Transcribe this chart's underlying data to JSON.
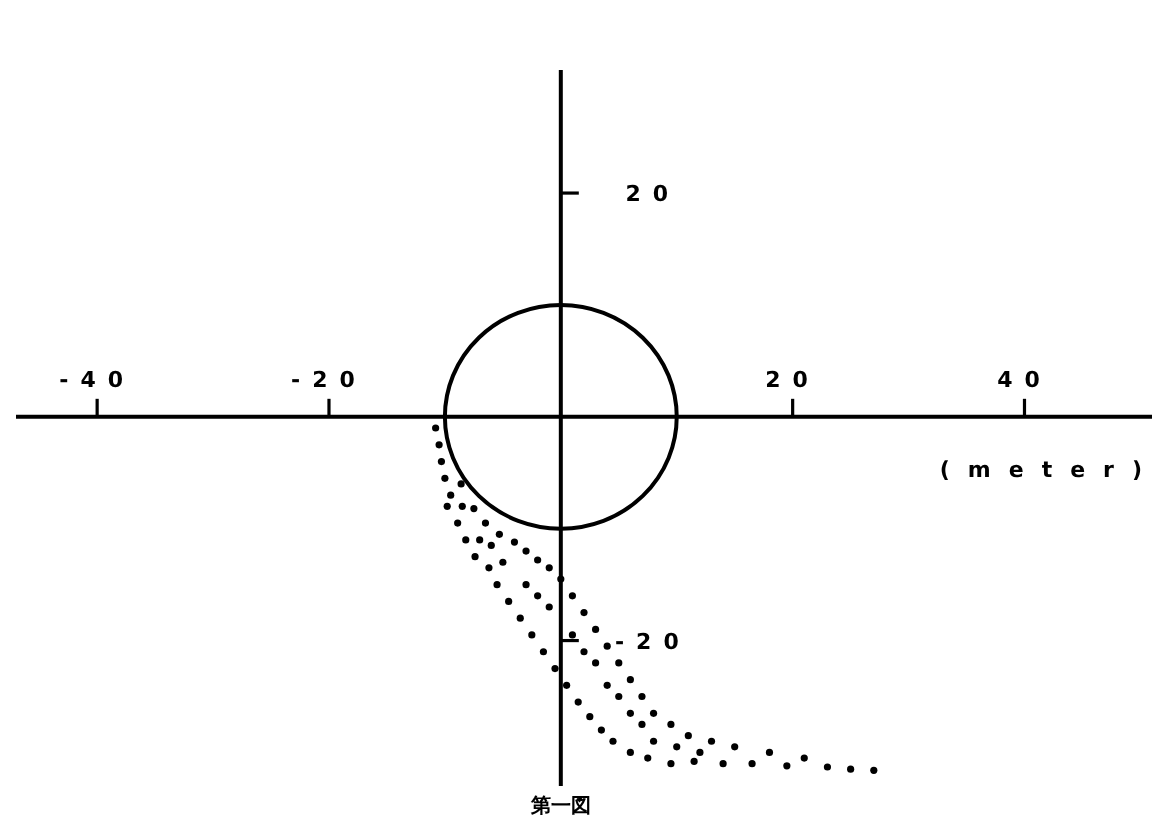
{
  "chart_data": {
    "type": "scatter",
    "xlabel": "(meter)",
    "annotations": [
      "第一図"
    ],
    "xlim": [
      -47,
      51
    ],
    "ylim": [
      -33,
      31
    ],
    "xticks": [
      -40,
      -20,
      20,
      40
    ],
    "yticks": [
      -20,
      20
    ],
    "series": [
      {
        "type": "scatter",
        "color": "#000000",
        "marker": "circle",
        "x": [
          -10.8,
          -10.5,
          -10.3,
          -10,
          -9.5,
          -8.6,
          -9.8,
          -8.9,
          -7.5,
          -8.2,
          -6.5,
          -7.4,
          -5.3,
          -6.2,
          -4,
          -5.5,
          -3,
          -4.5,
          -2,
          -3.5,
          -1,
          -2.5,
          0,
          -1.5,
          1,
          -0.5,
          2,
          0.5,
          3,
          1.5,
          4,
          2.5,
          5,
          3.5,
          6,
          4.5,
          7,
          6,
          8,
          7.5,
          9.5,
          9.5,
          11,
          11.5,
          13,
          14,
          15,
          16.5,
          18,
          19.5,
          21,
          23,
          25,
          27,
          -7,
          -5,
          -3,
          -1,
          1,
          3,
          5,
          7,
          -8.5,
          -6,
          -2,
          2,
          4,
          6,
          8,
          10,
          12
        ],
        "values": [
          -1,
          -2.5,
          -4,
          -5.5,
          -7,
          -6,
          -8,
          -9.5,
          -8.2,
          -11,
          -9.5,
          -12.5,
          -10.5,
          -13.5,
          -11.2,
          -15,
          -12,
          -16.5,
          -12.8,
          -18,
          -13.5,
          -19.5,
          -14.5,
          -21,
          -16,
          -22.5,
          -17.5,
          -24,
          -19,
          -25.5,
          -20.5,
          -26.8,
          -22,
          -28,
          -23.5,
          -29,
          -25,
          -30,
          -26.5,
          -30.5,
          -27.5,
          -31,
          -28.5,
          -30.8,
          -29,
          -31,
          -29.5,
          -31,
          -30,
          -31.2,
          -30.5,
          -31.3,
          -31.5,
          -31.6,
          -11,
          -13,
          -15,
          -17,
          -19.5,
          -22,
          -25,
          -27.5,
          -8,
          -11.5,
          -16,
          -21,
          -24,
          -26.5,
          -29,
          -29.5,
          -30
        ]
      }
    ]
  }
}
